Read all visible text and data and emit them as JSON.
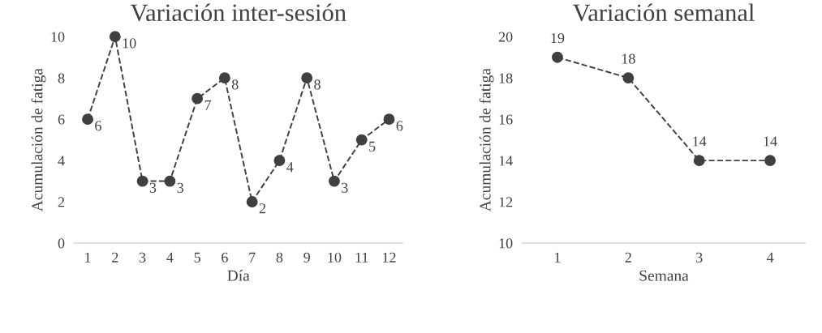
{
  "chart_data": [
    {
      "type": "line",
      "title": "Variación inter-sesión",
      "xlabel": "Día",
      "ylabel": "Acumulación de fatiga",
      "categories": [
        "1",
        "2",
        "3",
        "4",
        "5",
        "6",
        "7",
        "8",
        "9",
        "10",
        "11",
        "12"
      ],
      "series": [
        {
          "color": "#404040",
          "values": [
            6,
            10,
            3,
            3,
            7,
            8,
            2,
            4,
            8,
            3,
            5,
            6
          ]
        }
      ],
      "ylim": [
        0,
        10
      ],
      "yticks": [
        0,
        2,
        4,
        6,
        8,
        10
      ],
      "grid": false,
      "legend": false,
      "marker": "circle",
      "line_style": "dashed",
      "data_labels": true
    },
    {
      "type": "line",
      "title": "Variación semanal",
      "xlabel": "Semana",
      "ylabel": "Acumulación de fatiga",
      "categories": [
        "1",
        "2",
        "3",
        "4"
      ],
      "series": [
        {
          "color": "#404040",
          "values": [
            19,
            18,
            14,
            14
          ]
        }
      ],
      "ylim": [
        10,
        20
      ],
      "yticks": [
        10,
        12,
        14,
        16,
        18,
        20
      ],
      "grid": false,
      "legend": false,
      "marker": "circle",
      "line_style": "dashed",
      "data_labels": true
    }
  ]
}
